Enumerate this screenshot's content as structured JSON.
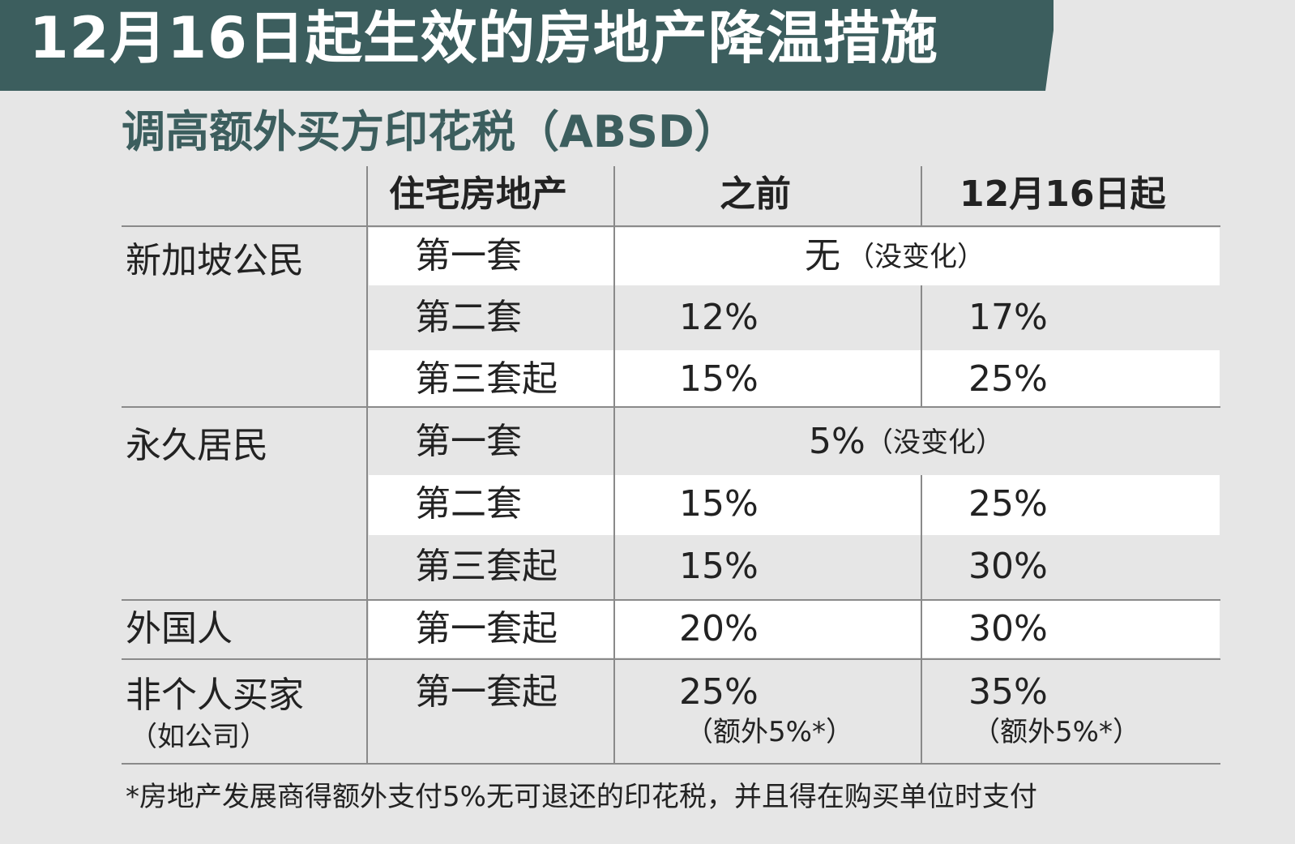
{
  "banner_title": "12月16日起生效的房地产降温措施",
  "subtitle": "调高额外买方印花税（ABSD）",
  "headers": {
    "property": "住宅房地产",
    "before": "之前",
    "from": "12月16日起"
  },
  "groups": {
    "citizen": "新加坡公民",
    "pr": "永久居民",
    "foreigner": "外国人",
    "entity": "非个人买家",
    "entity_note": "（如公司）"
  },
  "rows": {
    "c1": {
      "item": "第一套",
      "merged": "无",
      "merged_note": "（没变化）"
    },
    "c2": {
      "item": "第二套",
      "before": "12%",
      "after": "17%"
    },
    "c3": {
      "item": "第三套起",
      "before": "15%",
      "after": "25%"
    },
    "p1": {
      "item": "第一套",
      "merged": "5%",
      "merged_note": "（没变化）"
    },
    "p2": {
      "item": "第二套",
      "before": "15%",
      "after": "25%"
    },
    "p3": {
      "item": "第三套起",
      "before": "15%",
      "after": "30%"
    },
    "f1": {
      "item": "第一套起",
      "before": "20%",
      "after": "30%"
    },
    "e1": {
      "item": "第一套起",
      "before": "25%",
      "before_note": "（额外5%*）",
      "after": "35%",
      "after_note": "（额外5%*）"
    }
  },
  "footnote": "*房地产发展商得额外支付5%无可退还的印花税，并且得在购买单位时支付"
}
